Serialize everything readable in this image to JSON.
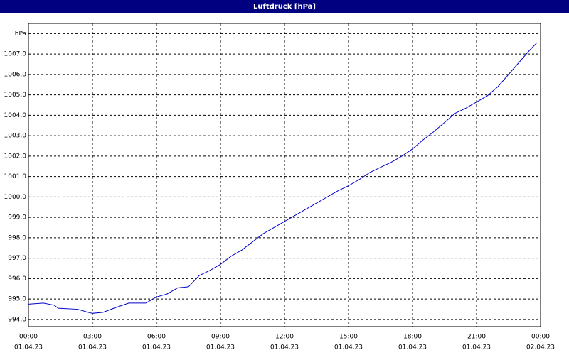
{
  "chart_data": {
    "type": "line",
    "title": "Luftdruck [hPa]",
    "x": [
      0,
      0.7,
      1.2,
      1.4,
      2.3,
      2.8,
      3,
      3.5,
      4,
      4.7,
      5.5,
      6,
      6.5,
      7,
      7.5,
      8,
      8.5,
      9,
      9.5,
      10,
      10.5,
      11,
      11.5,
      12,
      12.5,
      13,
      13.5,
      14,
      14.5,
      15,
      15.5,
      16,
      16.5,
      17,
      17.5,
      18,
      18.5,
      19,
      19.5,
      20,
      20.5,
      21,
      21.5,
      22,
      22.5,
      23,
      23.5,
      23.83
    ],
    "series": [
      {
        "name": "Luftdruck",
        "color": "#0000cc",
        "values": [
          994.75,
          994.8,
          994.7,
          994.55,
          994.5,
          994.35,
          994.3,
          994.35,
          994.55,
          994.8,
          994.8,
          995.1,
          995.25,
          995.55,
          995.6,
          996.15,
          996.4,
          996.7,
          997.1,
          997.4,
          997.8,
          998.2,
          998.5,
          998.8,
          999.1,
          999.4,
          999.7,
          1000.0,
          1000.3,
          1000.55,
          1000.85,
          1001.2,
          1001.45,
          1001.7,
          1002.0,
          1002.35,
          1002.8,
          1003.2,
          1003.65,
          1004.1,
          1004.35,
          1004.65,
          1004.95,
          1005.4,
          1006.0,
          1006.6,
          1007.2,
          1007.55
        ]
      }
    ],
    "xlim": [
      0,
      24
    ],
    "xticks": [
      {
        "value": 0,
        "label": "00:00",
        "date": "01.04.23"
      },
      {
        "value": 3,
        "label": "03:00",
        "date": "01.04.23"
      },
      {
        "value": 6,
        "label": "06:00",
        "date": "01.04.23"
      },
      {
        "value": 9,
        "label": "09:00",
        "date": "01.04.23"
      },
      {
        "value": 12,
        "label": "12:00",
        "date": "01.04.23"
      },
      {
        "value": 15,
        "label": "15:00",
        "date": "01.04.23"
      },
      {
        "value": 18,
        "label": "18:00",
        "date": "01.04.23"
      },
      {
        "value": 21,
        "label": "21:00",
        "date": "01.04.23"
      },
      {
        "value": 24,
        "label": "00:00",
        "date": "02.04.23"
      }
    ],
    "ylim": [
      993.65,
      1008.5
    ],
    "yticks": [
      {
        "value": 994,
        "label": "994,0"
      },
      {
        "value": 995,
        "label": "995,0"
      },
      {
        "value": 996,
        "label": "996,0"
      },
      {
        "value": 997,
        "label": "997,0"
      },
      {
        "value": 998,
        "label": "998,0"
      },
      {
        "value": 999,
        "label": "999,0"
      },
      {
        "value": 1000,
        "label": "1000,0"
      },
      {
        "value": 1001,
        "label": "1001,0"
      },
      {
        "value": 1002,
        "label": "1002,0"
      },
      {
        "value": 1003,
        "label": "1003,0"
      },
      {
        "value": 1004,
        "label": "1004,0"
      },
      {
        "value": 1005,
        "label": "1005,0"
      },
      {
        "value": 1006,
        "label": "1006,0"
      },
      {
        "value": 1007,
        "label": "1007,0"
      },
      {
        "value": 1008,
        "label": "hPa"
      }
    ],
    "grid": true
  }
}
